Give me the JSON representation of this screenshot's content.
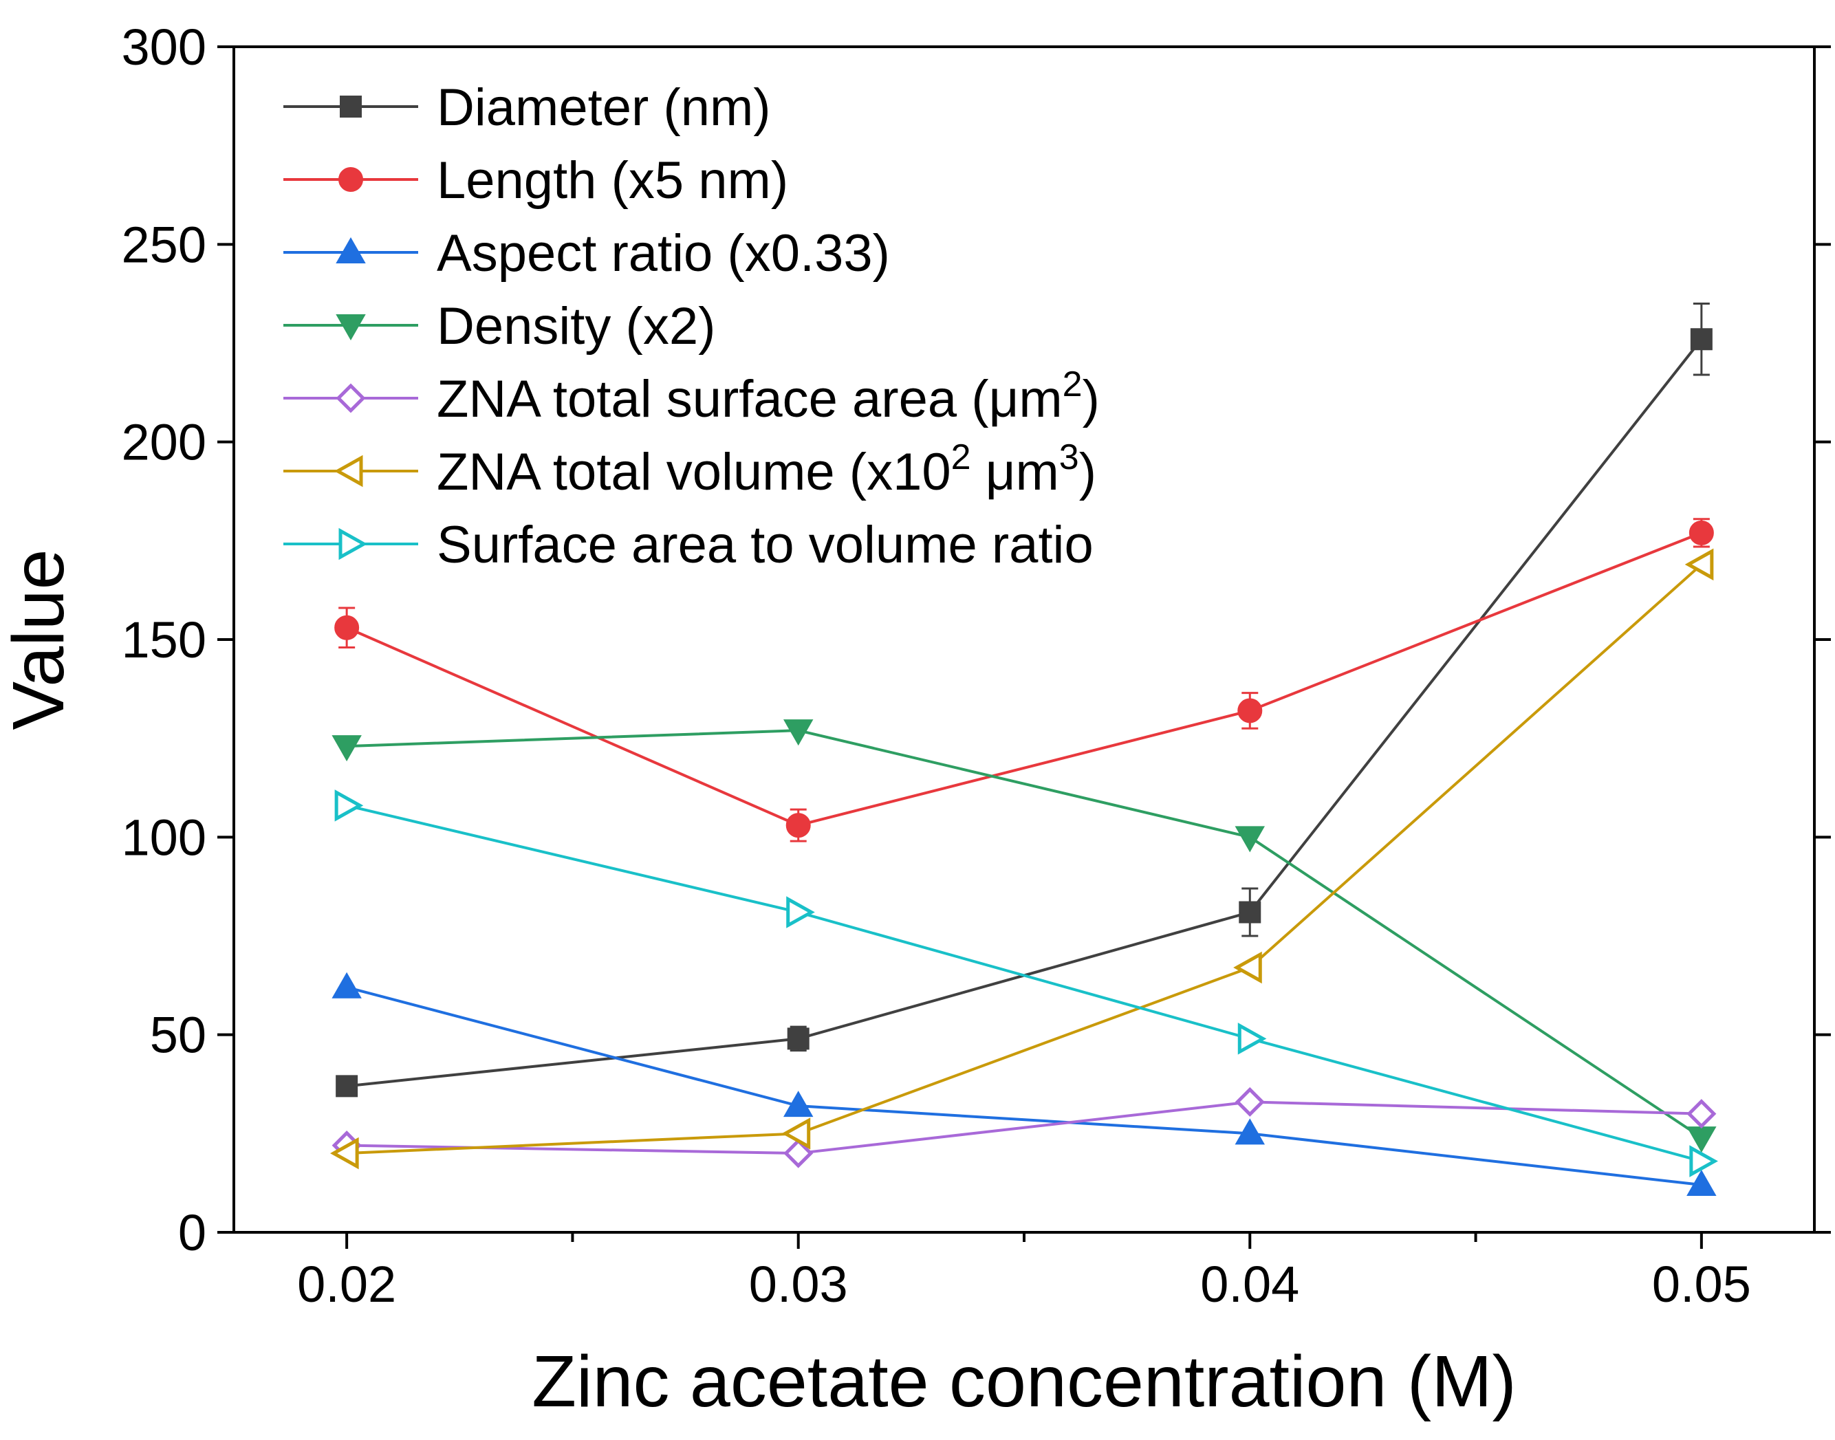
{
  "chart_data": {
    "type": "line",
    "title": "",
    "xlabel": "Zinc acetate concentration (M)",
    "ylabel": "Value",
    "x": [
      0.02,
      0.03,
      0.04,
      0.05
    ],
    "xlim": [
      0.0175,
      0.0525
    ],
    "ylim": [
      0,
      300
    ],
    "xticks": [
      0.02,
      0.03,
      0.04,
      0.05
    ],
    "xtick_labels": [
      "0.02",
      "0.03",
      "0.04",
      "0.05"
    ],
    "xminor_ticks": [
      0.025,
      0.035,
      0.045
    ],
    "yticks": [
      0,
      50,
      100,
      150,
      200,
      250,
      300
    ],
    "ytick_labels": [
      "0",
      "50",
      "100",
      "150",
      "200",
      "250",
      "300"
    ],
    "grid": false,
    "legend_position": "top-left",
    "series": [
      {
        "name": "Diameter (nm)",
        "label_main": "Diameter (nm)",
        "color": "#404040",
        "marker": "square",
        "values": [
          37,
          49,
          81,
          226
        ],
        "errors": [
          1,
          3,
          6,
          9
        ]
      },
      {
        "name": "Length (x5 nm)",
        "label_main": "Length (x5 nm)",
        "color": "#e8383d",
        "marker": "circle",
        "values": [
          153,
          103,
          132,
          177
        ],
        "errors": [
          5,
          4,
          4.5,
          3.5
        ]
      },
      {
        "name": "Aspect ratio (x0.33)",
        "label_main": "Aspect ratio (x0.33)",
        "color": "#1f6fe0",
        "marker": "triangle-up",
        "values": [
          62,
          32,
          25,
          12
        ],
        "errors": [
          0,
          0,
          0,
          0
        ]
      },
      {
        "name": "Density (x2)",
        "label_main": "Density (x2)",
        "color": "#2e9e62",
        "marker": "triangle-down",
        "values": [
          123,
          127,
          100,
          24
        ],
        "errors": [
          0,
          0,
          0,
          0
        ]
      },
      {
        "name": "ZNA total surface area (μm2)",
        "label_main": "ZNA total surface area (μm",
        "label_sup": "2",
        "label_tail": ")",
        "color": "#a869d8",
        "marker": "diamond-open",
        "values": [
          22,
          20,
          33,
          30
        ],
        "errors": [
          0,
          0,
          0,
          0
        ]
      },
      {
        "name": "ZNA total volume (x102 μm3)",
        "label_main": "ZNA total volume (x10",
        "label_sup": "2",
        "label_mid": " μm",
        "label_sup2": "3",
        "label_tail": ")",
        "color": "#c99a0a",
        "marker": "triangle-left-open",
        "values": [
          20,
          25,
          67,
          169
        ],
        "errors": [
          0,
          0,
          0,
          0
        ]
      },
      {
        "name": "Surface area to volume ratio",
        "label_main": "Surface area to volume ratio",
        "color": "#19c0c8",
        "marker": "triangle-right-open",
        "values": [
          108,
          81,
          49,
          18
        ],
        "errors": [
          0,
          0,
          0,
          0
        ]
      }
    ]
  }
}
